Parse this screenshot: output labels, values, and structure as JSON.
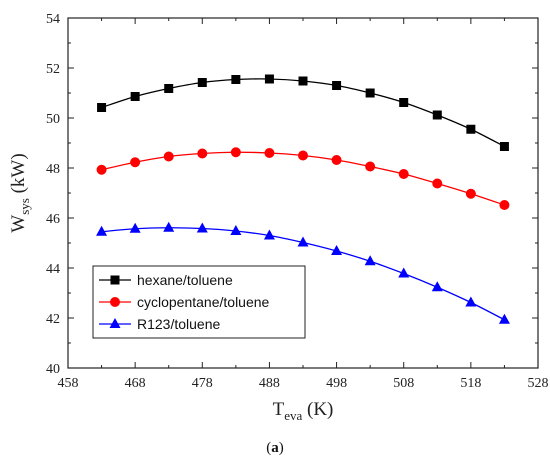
{
  "chart_data": {
    "type": "line",
    "title": "",
    "xlabel": {
      "main": "T",
      "sub": "eva",
      "unit": " (K)"
    },
    "ylabel": {
      "main": "W",
      "sub": "sys",
      "unit": " (kW)"
    },
    "xlim": [
      458,
      528
    ],
    "ylim": [
      40,
      54
    ],
    "xticks": [
      458,
      468,
      478,
      488,
      498,
      508,
      518,
      528
    ],
    "yticks": [
      40,
      42,
      44,
      46,
      48,
      50,
      52,
      54
    ],
    "grid": false,
    "legend_position": "bottom-left",
    "x": [
      463,
      468,
      473,
      478,
      483,
      488,
      493,
      498,
      503,
      508,
      513,
      518,
      523
    ],
    "series": [
      {
        "name": "hexane/toluene",
        "color": "#000000",
        "marker": "square",
        "values": [
          50.42,
          50.86,
          51.18,
          51.42,
          51.54,
          51.56,
          51.48,
          51.3,
          51.0,
          50.62,
          50.12,
          49.55,
          48.86
        ]
      },
      {
        "name": "cyclopentane/toluene",
        "color": "#ff0000",
        "marker": "circle",
        "values": [
          47.93,
          48.23,
          48.46,
          48.58,
          48.63,
          48.6,
          48.5,
          48.32,
          48.06,
          47.76,
          47.38,
          46.97,
          46.52
        ]
      },
      {
        "name": "R123/toluene",
        "color": "#0000ff",
        "marker": "triangle",
        "values": [
          45.45,
          45.57,
          45.61,
          45.58,
          45.48,
          45.3,
          45.02,
          44.68,
          44.27,
          43.78,
          43.23,
          42.62,
          41.93
        ]
      }
    ]
  },
  "caption": {
    "open": "(",
    "label": "a",
    "close": ")"
  }
}
